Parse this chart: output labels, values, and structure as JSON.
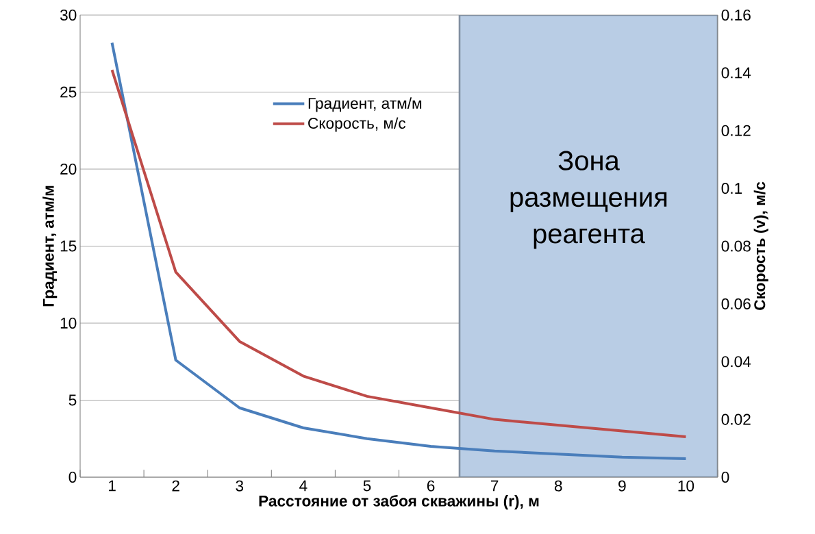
{
  "chart_data": {
    "type": "line",
    "xlabel": "Расстояние от забоя скважины (r), м",
    "ylabel": "Градиент, атм/м",
    "y2label": "Скорость (v), м/с",
    "x": [
      1,
      2,
      3,
      4,
      5,
      6,
      7,
      8,
      9,
      10
    ],
    "xlim": [
      0.5,
      10.5
    ],
    "xticks": [
      1,
      2,
      3,
      4,
      5,
      6,
      7,
      8,
      9,
      10
    ],
    "ylim": [
      0,
      30
    ],
    "yticks": [
      0,
      5,
      10,
      15,
      20,
      25,
      30
    ],
    "y2lim": [
      0,
      0.16
    ],
    "y2ticks": [
      0,
      0.02,
      0.04,
      0.06,
      0.08,
      0.1,
      0.12,
      0.14,
      0.16
    ],
    "series": [
      {
        "name": "Градиент, атм/м",
        "color": "#4a7ebb",
        "values": [
          28.2,
          7.6,
          4.5,
          3.2,
          2.5,
          2.0,
          1.7,
          1.5,
          1.3,
          1.2
        ]
      },
      {
        "name": "Скорость, м/с",
        "color": "#be4b48",
        "axis": "y2",
        "values": [
          0.141,
          0.071,
          0.047,
          0.035,
          0.028,
          0.024,
          0.02,
          0.018,
          0.016,
          0.014
        ]
      }
    ],
    "bands": [
      {
        "axis": "x",
        "from": 6.45,
        "to": 10.5,
        "label": "Зона размещения реагента",
        "color": "#b9cde5"
      }
    ],
    "grid": "y",
    "legend": "top",
    "marker": "none",
    "line_style": "solid"
  }
}
